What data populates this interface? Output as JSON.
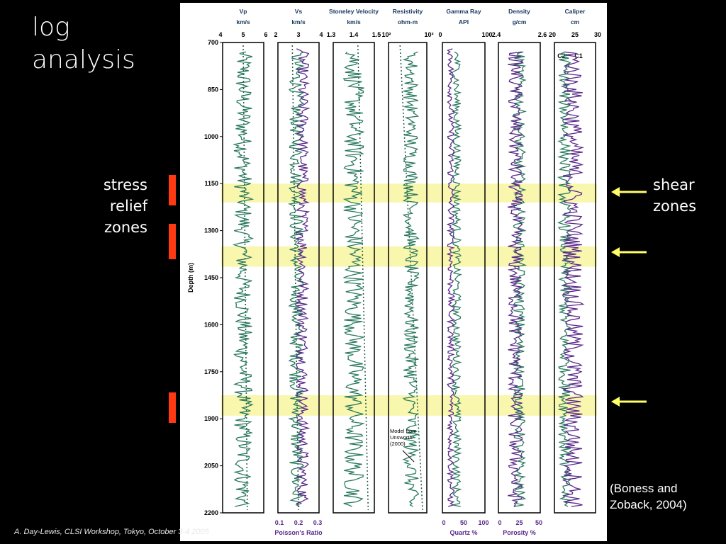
{
  "slide": {
    "title_line1": "log",
    "title_line2": "analysis",
    "stress_label": [
      "stress",
      "relief",
      "zones"
    ],
    "shear_label": [
      "shear",
      "zones"
    ],
    "citation": [
      "(Boness and",
      "Zoback, 2004)"
    ],
    "footer": "A. Day-Lewis, CLSI Workshop, Tokyo, October 3-4 2005"
  },
  "colors": {
    "background": "#000000",
    "stress_bar": "#ff3a12",
    "shear_arrow": "#ffff66",
    "zone_highlight": "#f8f5a0",
    "curve_green": "#2a7a5e",
    "curve_purple": "#5a2a8a",
    "model_line": "#1a5a40"
  },
  "chart_data": {
    "type": "line",
    "ylabel": "Depth (m)",
    "y_ticks": [
      700,
      850,
      1000,
      1150,
      1300,
      1450,
      1600,
      1750,
      1900,
      2050,
      2200
    ],
    "ylim": [
      700,
      2200
    ],
    "y_inverted": true,
    "shear_zones": [
      [
        1150,
        1210
      ],
      [
        1350,
        1415
      ],
      [
        1825,
        1890
      ]
    ],
    "model_annotation": [
      "Model from",
      "Unsworth",
      "(2000)"
    ],
    "tracks": [
      {
        "title": "Vp",
        "unit": "km/s",
        "top_ticks": [
          "4",
          "5",
          "6"
        ],
        "xlim": [
          4,
          6
        ],
        "series": [
          {
            "values": {
              "mean": 5.0,
              "amp": 0.45
            }
          }
        ],
        "trend": [
          5.0,
          5.2
        ]
      },
      {
        "title": "Vs",
        "unit": "km/s",
        "top_ticks": [
          "2",
          "3",
          "4"
        ],
        "xlim": [
          2,
          4
        ],
        "bottom_ticks": [
          "0.1",
          "0.2",
          "0.3"
        ],
        "bottom_label": "Poisson's Ratio",
        "series": [
          {
            "values": {
              "mean": 2.9,
              "amp": 0.35
            }
          },
          {
            "values": {
              "mean": 3.2,
              "amp": 0.3
            }
          }
        ],
        "trend": [
          2.7,
          3.0
        ]
      },
      {
        "title": "Stoneley Velocity",
        "unit": "km/s",
        "top_ticks": [
          "1.3",
          "1.4",
          "1.5"
        ],
        "xlim": [
          1.3,
          1.5
        ],
        "series": [
          {
            "values": {
              "mean": 1.4,
              "amp": 0.05
            }
          }
        ],
        "trend": [
          1.42,
          1.47
        ]
      },
      {
        "title": "Resistivity",
        "unit": "ohm-m",
        "top_ticks": [
          "10²",
          "10³"
        ],
        "xlim": [
          10,
          1000
        ],
        "xscale": "log",
        "series": [
          {
            "values": {
              "mean": 150,
              "amp": 0.4
            }
          }
        ],
        "trend": [
          40,
          600
        ]
      },
      {
        "title": "Gamma Ray",
        "unit": "API",
        "top_ticks": [
          "0",
          "100"
        ],
        "xlim": [
          0,
          150
        ],
        "bottom_ticks": [
          "0",
          "50",
          "100"
        ],
        "bottom_label": "Quartz %",
        "series": [
          {
            "values": {
              "mean": 50,
              "amp": 15
            }
          },
          {
            "values": {
              "mean": 30,
              "amp": 12
            }
          }
        ]
      },
      {
        "title": "Density",
        "unit": "g/cm",
        "top_ticks": [
          "2.4",
          "2.6"
        ],
        "xlim": [
          2.3,
          2.8
        ],
        "bottom_ticks": [
          "0",
          "25",
          "50"
        ],
        "bottom_label": "Porosity %",
        "series": [
          {
            "values": {
              "mean": 2.55,
              "amp": 0.07
            }
          },
          {
            "values": {
              "mean": 2.5,
              "amp": 0.09
            }
          }
        ]
      },
      {
        "title": "Caliper",
        "unit": "cm",
        "top_ticks": [
          "20",
          "25",
          "30"
        ],
        "xlim": [
          20,
          30
        ],
        "legend": [
          "C2",
          "C1"
        ],
        "series": [
          {
            "values": {
              "mean": 22.5,
              "amp": 1.5
            }
          },
          {
            "values": {
              "mean": 24.5,
              "amp": 2.5
            }
          }
        ]
      }
    ]
  }
}
